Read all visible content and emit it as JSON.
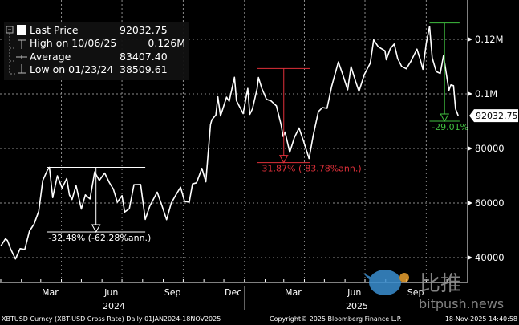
{
  "legend": {
    "items": [
      {
        "label": "Last Price",
        "value": "92032.75",
        "icon": "filled-square-icon"
      },
      {
        "label": "High on 10/06/25",
        "value": "0.126M",
        "icon": "high-marker-icon"
      },
      {
        "label": "Average",
        "value": "83407.40",
        "icon": "average-marker-icon"
      },
      {
        "label": "Low on 01/23/24",
        "value": "38509.61",
        "icon": "low-marker-icon"
      }
    ]
  },
  "footer": {
    "security": "XBTUSD Curncy (XBT-USD Cross Rate) Daily 01JAN2024-18NOV2025",
    "copyright": "Copyright© 2025 Bloomberg Finance L.P.",
    "timestamp": "18-Nov-2025 14:40:58"
  },
  "watermark": {
    "chinese": "比推",
    "site": "bitpush.news",
    "brand_color": "#3a8fd1"
  },
  "chart_data": {
    "type": "line",
    "xlim": [
      "2024-01-01",
      "2025-11-18"
    ],
    "ylim": [
      30000,
      134000
    ],
    "grid": true,
    "legend_placement": "top-left",
    "line_color": "#ffffff",
    "y_ticks": [
      {
        "value": 40000,
        "label": "40000"
      },
      {
        "value": 60000,
        "label": "60000"
      },
      {
        "value": 80000,
        "label": "80000"
      },
      {
        "value": 100000,
        "label": "0.1M"
      },
      {
        "value": 120000,
        "label": "0.12M"
      }
    ],
    "x_ticks": [
      {
        "date": "2024-03-15",
        "label": "Mar"
      },
      {
        "date": "2024-06-15",
        "label": "Jun"
      },
      {
        "date": "2024-09-15",
        "label": "Sep"
      },
      {
        "date": "2024-12-15",
        "label": "Dec"
      },
      {
        "date": "2025-03-15",
        "label": "Mar"
      },
      {
        "date": "2025-06-15",
        "label": "Jun"
      },
      {
        "date": "2025-09-15",
        "label": "Sep"
      }
    ],
    "years": [
      {
        "date": "2024-07-01",
        "label": "2024"
      },
      {
        "date": "2025-07-01",
        "label": "2025"
      }
    ],
    "last_price_label": "92032.75",
    "annotations": [
      {
        "from": "2024-03-10",
        "to": "2024-08-05",
        "top": 73100,
        "bottom": 49400,
        "label": "-32.48% (-62.28%ann.)",
        "color": "#ffffff"
      },
      {
        "from": "2025-01-20",
        "to": "2025-04-10",
        "top": 109300,
        "bottom": 74800,
        "label": "-31.87% (-83.78%ann.)",
        "color": "#e0303a"
      },
      {
        "from": "2025-10-06",
        "to": "2025-11-20",
        "top": 126000,
        "bottom": 90000,
        "label": "-29.01%",
        "color": "#3fbf3f"
      }
    ],
    "series": [
      {
        "values": [
          [
            "2024-01-01",
            44200
          ],
          [
            "2024-01-08",
            46900
          ],
          [
            "2024-01-11",
            46300
          ],
          [
            "2024-01-16",
            43100
          ],
          [
            "2024-01-23",
            39500
          ],
          [
            "2024-01-30",
            43300
          ],
          [
            "2024-02-06",
            43000
          ],
          [
            "2024-02-13",
            49700
          ],
          [
            "2024-02-20",
            52300
          ],
          [
            "2024-02-27",
            57000
          ],
          [
            "2024-03-04",
            68300
          ],
          [
            "2024-03-11",
            72100
          ],
          [
            "2024-03-14",
            73100
          ],
          [
            "2024-03-19",
            62000
          ],
          [
            "2024-03-26",
            70000
          ],
          [
            "2024-04-02",
            65500
          ],
          [
            "2024-04-09",
            69000
          ],
          [
            "2024-04-13",
            63000
          ],
          [
            "2024-04-17",
            61300
          ],
          [
            "2024-04-23",
            66400
          ],
          [
            "2024-05-01",
            57800
          ],
          [
            "2024-05-07",
            63000
          ],
          [
            "2024-05-14",
            61500
          ],
          [
            "2024-05-21",
            71400
          ],
          [
            "2024-05-28",
            68300
          ],
          [
            "2024-06-05",
            71000
          ],
          [
            "2024-06-12",
            67500
          ],
          [
            "2024-06-18",
            65100
          ],
          [
            "2024-06-24",
            60300
          ],
          [
            "2024-07-01",
            62700
          ],
          [
            "2024-07-05",
            56700
          ],
          [
            "2024-07-12",
            57900
          ],
          [
            "2024-07-19",
            66700
          ],
          [
            "2024-07-29",
            66800
          ],
          [
            "2024-08-05",
            54000
          ],
          [
            "2024-08-12",
            59000
          ],
          [
            "2024-08-23",
            64000
          ],
          [
            "2024-08-30",
            59000
          ],
          [
            "2024-09-06",
            53900
          ],
          [
            "2024-09-13",
            60000
          ],
          [
            "2024-09-20",
            63000
          ],
          [
            "2024-09-27",
            65800
          ],
          [
            "2024-10-03",
            60600
          ],
          [
            "2024-10-10",
            60300
          ],
          [
            "2024-10-15",
            67000
          ],
          [
            "2024-10-21",
            67400
          ],
          [
            "2024-10-29",
            72700
          ],
          [
            "2024-11-04",
            67800
          ],
          [
            "2024-11-11",
            88700
          ],
          [
            "2024-11-13",
            90500
          ],
          [
            "2024-11-19",
            92300
          ],
          [
            "2024-11-22",
            98900
          ],
          [
            "2024-11-26",
            91900
          ],
          [
            "2024-12-05",
            98800
          ],
          [
            "2024-12-09",
            97300
          ],
          [
            "2024-12-17",
            106100
          ],
          [
            "2024-12-20",
            97500
          ],
          [
            "2024-12-30",
            92800
          ],
          [
            "2025-01-06",
            102000
          ],
          [
            "2025-01-09",
            92500
          ],
          [
            "2025-01-13",
            94500
          ],
          [
            "2025-01-20",
            102000
          ],
          [
            "2025-01-22",
            106000
          ],
          [
            "2025-01-27",
            102000
          ],
          [
            "2025-02-03",
            98000
          ],
          [
            "2025-02-10",
            97400
          ],
          [
            "2025-02-18",
            95600
          ],
          [
            "2025-02-25",
            88700
          ],
          [
            "2025-02-28",
            84400
          ],
          [
            "2025-03-03",
            86000
          ],
          [
            "2025-03-10",
            78600
          ],
          [
            "2025-03-17",
            84000
          ],
          [
            "2025-03-24",
            87500
          ],
          [
            "2025-03-31",
            82500
          ],
          [
            "2025-04-08",
            76300
          ],
          [
            "2025-04-14",
            84500
          ],
          [
            "2025-04-22",
            93500
          ],
          [
            "2025-04-28",
            95000
          ],
          [
            "2025-05-05",
            94700
          ],
          [
            "2025-05-12",
            102800
          ],
          [
            "2025-05-22",
            111700
          ],
          [
            "2025-05-28",
            107500
          ],
          [
            "2025-06-05",
            101500
          ],
          [
            "2025-06-10",
            110000
          ],
          [
            "2025-06-17",
            104500
          ],
          [
            "2025-06-22",
            100900
          ],
          [
            "2025-06-30",
            107100
          ],
          [
            "2025-07-09",
            111300
          ],
          [
            "2025-07-14",
            119800
          ],
          [
            "2025-07-21",
            117300
          ],
          [
            "2025-07-31",
            115800
          ],
          [
            "2025-08-02",
            112500
          ],
          [
            "2025-08-08",
            116600
          ],
          [
            "2025-08-14",
            118300
          ],
          [
            "2025-08-19",
            113000
          ],
          [
            "2025-08-25",
            110100
          ],
          [
            "2025-09-01",
            109200
          ],
          [
            "2025-09-08",
            112000
          ],
          [
            "2025-09-17",
            116400
          ],
          [
            "2025-09-22",
            112600
          ],
          [
            "2025-09-26",
            109000
          ],
          [
            "2025-10-01",
            118600
          ],
          [
            "2025-10-06",
            124700
          ],
          [
            "2025-10-10",
            113200
          ],
          [
            "2025-10-16",
            108200
          ],
          [
            "2025-10-22",
            107500
          ],
          [
            "2025-10-27",
            114100
          ],
          [
            "2025-11-04",
            101300
          ],
          [
            "2025-11-07",
            103300
          ],
          [
            "2025-11-11",
            103000
          ],
          [
            "2025-11-14",
            94500
          ],
          [
            "2025-11-18",
            92032.75
          ]
        ]
      }
    ]
  }
}
